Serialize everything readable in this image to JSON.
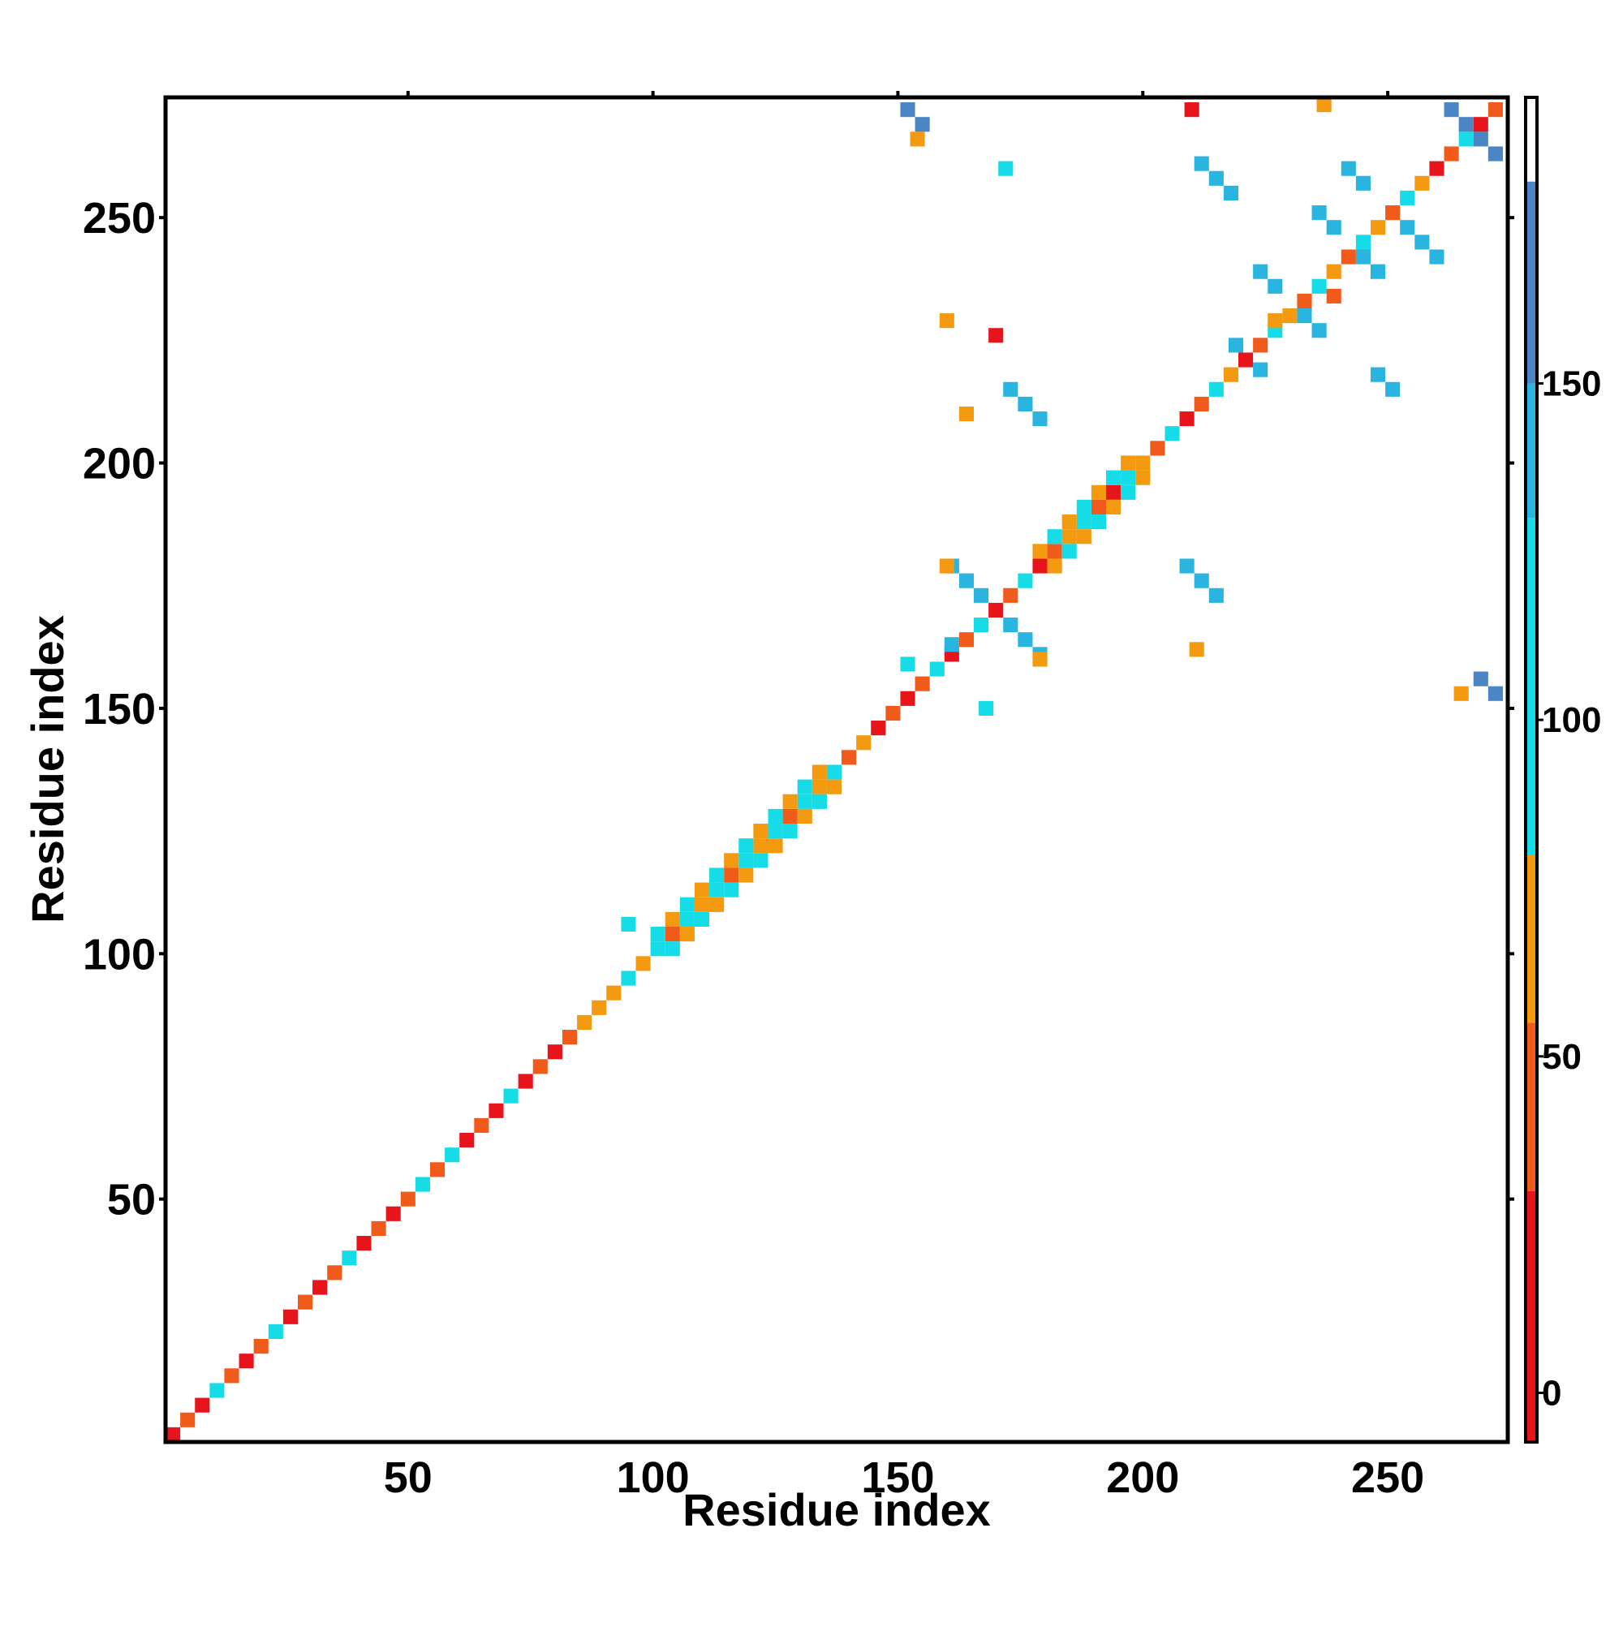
{
  "chart_data": {
    "type": "heatmap",
    "xlabel": "Residue index",
    "ylabel": "Residue index",
    "xlim": [
      0.5,
      274.5
    ],
    "ylim": [
      0.5,
      274.5
    ],
    "xticks": [
      50,
      100,
      150,
      200,
      250
    ],
    "yticks": [
      50,
      100,
      150,
      200,
      250
    ],
    "x": [
      2,
      5,
      8,
      11,
      14,
      17,
      20,
      23,
      26,
      29,
      32,
      35,
      38,
      41,
      44,
      47,
      50,
      53,
      56,
      59,
      62,
      65,
      68,
      71,
      74,
      77,
      80,
      83,
      86,
      89,
      92,
      95,
      98,
      101,
      104,
      107,
      110,
      113,
      116,
      119,
      122,
      125,
      128,
      131,
      134,
      137,
      140,
      143,
      146,
      149,
      152,
      155,
      158,
      161,
      164,
      167,
      170,
      173,
      176,
      179,
      182,
      185,
      188,
      191,
      194,
      197,
      200,
      203,
      206,
      209,
      212,
      215,
      218,
      221,
      224,
      227,
      230,
      233,
      236,
      239,
      242,
      245,
      248,
      251,
      254,
      257,
      260,
      263,
      266,
      269,
      272,
      101,
      104,
      104,
      107,
      107,
      110,
      110,
      113,
      113,
      116,
      116,
      119,
      119,
      122,
      122,
      125,
      125,
      128,
      128,
      131,
      131,
      134,
      134,
      137,
      179,
      182,
      182,
      185,
      185,
      188,
      188,
      191,
      191,
      194,
      194,
      197,
      197,
      200,
      152,
      155,
      154,
      161,
      164,
      167,
      173,
      176,
      179,
      160,
      179,
      161,
      173,
      176,
      179,
      209,
      212,
      215,
      212,
      215,
      218,
      219,
      224,
      224,
      227,
      233,
      236,
      236,
      239,
      245,
      248,
      242,
      245,
      254,
      257,
      260,
      263,
      266,
      269,
      272,
      248,
      251,
      269,
      272,
      164,
      211,
      265,
      95,
      152,
      168,
      227,
      239,
      210,
      237,
      172,
      170,
      160
    ],
    "y": [
      2,
      5,
      8,
      11,
      14,
      17,
      20,
      23,
      26,
      29,
      32,
      35,
      38,
      41,
      44,
      47,
      50,
      53,
      56,
      59,
      62,
      65,
      68,
      71,
      74,
      77,
      80,
      83,
      86,
      89,
      92,
      95,
      98,
      101,
      104,
      107,
      110,
      113,
      116,
      119,
      122,
      125,
      128,
      131,
      134,
      137,
      140,
      143,
      146,
      149,
      152,
      155,
      158,
      161,
      164,
      167,
      170,
      173,
      176,
      179,
      182,
      185,
      188,
      191,
      194,
      197,
      200,
      203,
      206,
      209,
      212,
      215,
      218,
      221,
      224,
      227,
      230,
      233,
      236,
      239,
      242,
      245,
      248,
      251,
      254,
      257,
      260,
      263,
      266,
      269,
      272,
      104,
      101,
      107,
      104,
      110,
      107,
      113,
      110,
      116,
      113,
      119,
      116,
      122,
      119,
      125,
      122,
      128,
      125,
      131,
      128,
      134,
      131,
      137,
      134,
      182,
      179,
      185,
      182,
      188,
      185,
      191,
      188,
      194,
      191,
      197,
      194,
      200,
      197,
      272,
      269,
      266,
      179,
      176,
      173,
      167,
      164,
      161,
      179,
      160,
      163,
      215,
      212,
      209,
      179,
      176,
      173,
      261,
      258,
      255,
      224,
      219,
      239,
      236,
      230,
      227,
      251,
      248,
      242,
      239,
      260,
      257,
      248,
      245,
      242,
      272,
      269,
      266,
      263,
      218,
      215,
      156,
      153,
      210,
      162,
      153,
      106,
      159,
      150,
      229,
      234,
      272,
      273,
      260,
      226,
      229
    ],
    "values": [
      10,
      40,
      10,
      100,
      40,
      10,
      40,
      100,
      10,
      40,
      10,
      40,
      100,
      10,
      40,
      10,
      40,
      100,
      40,
      100,
      10,
      40,
      10,
      100,
      10,
      40,
      10,
      40,
      65,
      65,
      65,
      100,
      65,
      100,
      40,
      100,
      65,
      100,
      40,
      100,
      65,
      100,
      40,
      100,
      65,
      100,
      40,
      65,
      10,
      40,
      10,
      40,
      100,
      10,
      40,
      100,
      10,
      40,
      100,
      10,
      40,
      65,
      100,
      40,
      10,
      100,
      65,
      40,
      100,
      10,
      40,
      100,
      65,
      10,
      40,
      100,
      65,
      40,
      100,
      65,
      40,
      100,
      65,
      40,
      100,
      65,
      10,
      40,
      100,
      10,
      40,
      100,
      100,
      65,
      65,
      100,
      100,
      65,
      65,
      100,
      100,
      65,
      65,
      100,
      100,
      65,
      65,
      100,
      100,
      65,
      65,
      100,
      100,
      65,
      65,
      65,
      65,
      100,
      100,
      65,
      65,
      100,
      100,
      65,
      65,
      100,
      100,
      65,
      65,
      155,
      155,
      60,
      140,
      140,
      140,
      140,
      140,
      140,
      60,
      60,
      140,
      145,
      145,
      145,
      135,
      135,
      135,
      145,
      145,
      135,
      140,
      140,
      140,
      140,
      140,
      140,
      145,
      145,
      145,
      145,
      140,
      140,
      140,
      140,
      140,
      155,
      150,
      150,
      155,
      135,
      135,
      150,
      150,
      60,
      60,
      60,
      100,
      100,
      100,
      65,
      40,
      10,
      60,
      100,
      10,
      60
    ],
    "colorbar": {
      "bins": [
        -7.3,
        30,
        55,
        80,
        130,
        150,
        180,
        192.5
      ],
      "colors": [
        "#e8141c",
        "#f05a1a",
        "#f39a10",
        "#16dce8",
        "#2ab4e0",
        "#4a86c4",
        "#ffffff"
      ],
      "ylim": [
        -7.3,
        192.5
      ],
      "yticks": [
        0,
        50,
        100,
        150
      ]
    }
  }
}
